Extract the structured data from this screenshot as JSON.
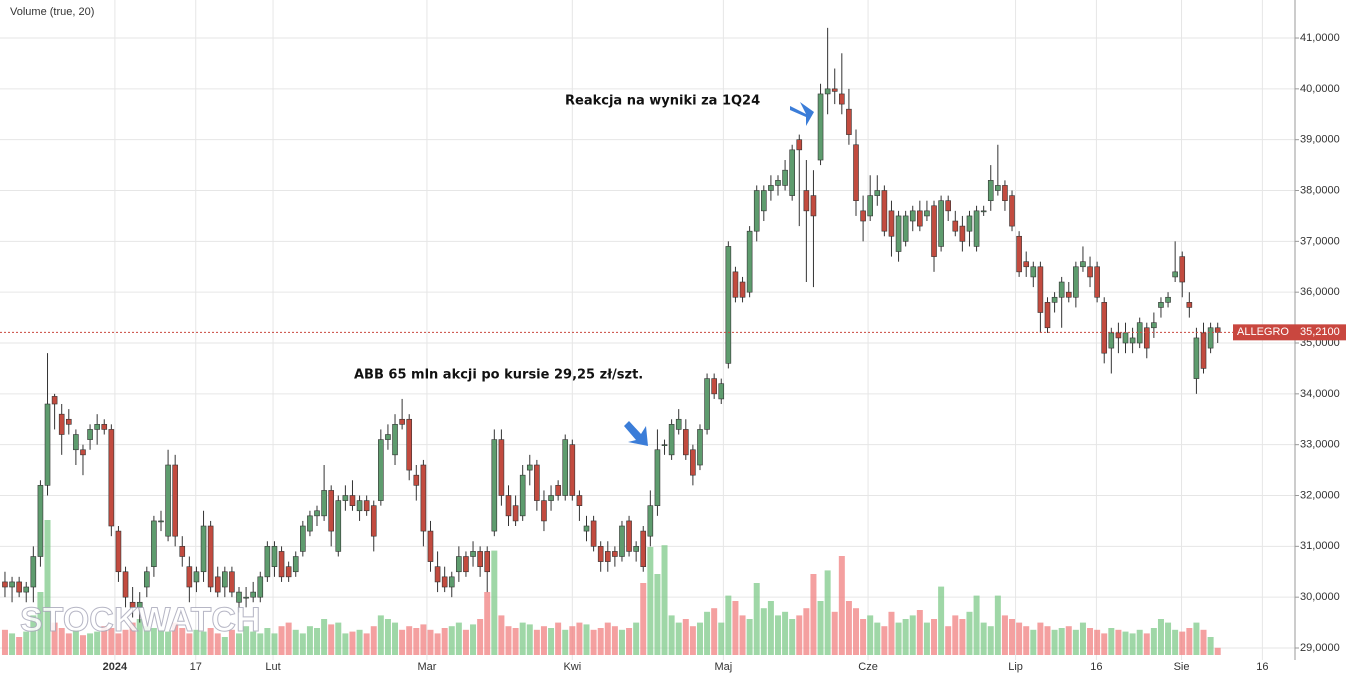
{
  "chart_data": {
    "type": "candlestick",
    "title": "Volume (true, 20)",
    "symbol": "ALLEGRO",
    "last_price": {
      "value": 35.21,
      "label": "35,2100"
    },
    "watermark": "STOCKWATCH",
    "annotations": [
      "Reakcja na wyniki za 1Q24",
      "ABB 65 mln akcji po kursie 29,25 zł/szt."
    ],
    "up_color": "#5e9c6e",
    "down_color": "#c24b3f",
    "last_price_color": "#c9473f",
    "xlim": [
      -0.7,
      181.9
    ],
    "xticks": [
      {
        "value": 15.5,
        "label": "2024"
      },
      {
        "value": 26.9,
        "label": "17"
      },
      {
        "value": 37.8,
        "label": "Lut"
      },
      {
        "value": 59.5,
        "label": "Mar"
      },
      {
        "value": 80,
        "label": "Kwi"
      },
      {
        "value": 101.3,
        "label": "Maj"
      },
      {
        "value": 121.7,
        "label": "Cze"
      },
      {
        "value": 142.5,
        "label": "Lip"
      },
      {
        "value": 153.9,
        "label": "16"
      },
      {
        "value": 165.9,
        "label": "Sie"
      },
      {
        "value": 177.3,
        "label": "16"
      }
    ],
    "ylim": [
      28.764,
      41.748
    ],
    "yticks": [
      {
        "value": 29,
        "label": "29,0000"
      },
      {
        "value": 30,
        "label": "30,0000"
      },
      {
        "value": 31,
        "label": "31,0000"
      },
      {
        "value": 32,
        "label": "32,0000"
      },
      {
        "value": 33,
        "label": "33,0000"
      },
      {
        "value": 34,
        "label": "34,0000"
      },
      {
        "value": 35,
        "label": "35,0000"
      },
      {
        "value": 36,
        "label": "36,0000"
      },
      {
        "value": 37,
        "label": "37,0000"
      },
      {
        "value": 38,
        "label": "38,0000"
      },
      {
        "value": 39,
        "label": "39,0000"
      },
      {
        "value": 40,
        "label": "40,0000"
      },
      {
        "value": 41,
        "label": "41,0000"
      }
    ],
    "y2lim": [
      0,
      100
    ],
    "grid": true,
    "open": [
      30.3,
      30.2,
      30.3,
      30.1,
      30.2,
      30.8,
      32.2,
      33.95,
      33.6,
      33.5,
      32.9,
      32.9,
      33.1,
      33.3,
      33.4,
      33.3,
      31.3,
      30.5,
      29.9,
      29.8,
      30.2,
      30.6,
      31.5,
      31.2,
      32.6,
      31.0,
      30.6,
      30.3,
      30.5,
      31.4,
      30.4,
      30.2,
      30.5,
      29.9,
      30.0,
      30.0,
      30.0,
      30.4,
      30.6,
      30.9,
      30.6,
      30.5,
      30.9,
      31.3,
      31.6,
      31.6,
      32.1,
      30.9,
      31.9,
      32.0,
      31.7,
      31.9,
      31.8,
      31.9,
      33.1,
      32.8,
      33.5,
      33.5,
      32.4,
      32.6,
      31.3,
      30.6,
      30.4,
      30.2,
      30.5,
      30.8,
      30.8,
      30.9,
      30.9,
      31.3,
      33.1,
      32.0,
      31.8,
      31.6,
      32.5,
      32.6,
      31.9,
      31.9,
      32.2,
      32.0,
      33.0,
      32.0,
      31.3,
      31.5,
      31.0,
      30.9,
      30.9,
      30.8,
      31.5,
      30.9,
      31.3,
      31.2,
      31.8,
      33.0,
      32.8,
      33.3,
      33.3,
      32.9,
      32.6,
      33.3,
      34.3,
      33.9,
      34.6,
      36.4,
      36.2,
      36.0,
      37.2,
      37.6,
      38.0,
      38.1,
      38.1,
      37.9,
      39.0,
      38.0,
      37.9,
      38.6,
      39.9,
      40.0,
      39.9,
      39.6,
      38.9,
      37.6,
      37.5,
      37.9,
      38.0,
      37.6,
      36.8,
      37.0,
      37.4,
      37.6,
      37.5,
      37.7,
      36.9,
      37.8,
      37.4,
      37.3,
      37.2,
      36.9,
      37.6,
      37.8,
      38.0,
      38.1,
      37.9,
      37.1,
      36.6,
      36.3,
      36.5,
      35.8,
      35.8,
      35.9,
      36.0,
      35.9,
      36.5,
      36.5,
      36.5,
      35.8,
      34.9,
      35.2,
      35.0,
      35.0,
      35.0,
      35.3,
      35.3,
      35.7,
      35.8,
      36.3,
      36.7,
      35.8,
      34.3,
      35.2,
      34.9,
      35.3
    ],
    "high": [
      30.5,
      30.4,
      30.4,
      30.3,
      31.0,
      32.3,
      34.8,
      34.0,
      33.8,
      33.7,
      33.3,
      33.0,
      33.4,
      33.6,
      33.5,
      33.4,
      31.4,
      30.6,
      30.2,
      30.1,
      30.6,
      31.6,
      31.7,
      32.9,
      32.8,
      31.2,
      30.8,
      30.6,
      31.7,
      31.5,
      30.6,
      30.6,
      30.6,
      30.2,
      30.2,
      30.3,
      30.5,
      31.1,
      31.1,
      31.0,
      30.7,
      30.9,
      31.5,
      31.7,
      31.8,
      32.6,
      32.2,
      32.0,
      32.2,
      32.3,
      32.0,
      32.0,
      31.9,
      33.3,
      33.4,
      33.6,
      33.9,
      33.6,
      32.6,
      32.7,
      31.5,
      30.9,
      30.6,
      30.5,
      31.0,
      30.9,
      31.1,
      31.0,
      31.0,
      33.3,
      33.3,
      32.2,
      32.0,
      32.6,
      32.8,
      32.7,
      32.1,
      32.2,
      32.3,
      33.2,
      33.1,
      32.1,
      31.6,
      31.6,
      31.1,
      31.1,
      31.0,
      31.5,
      31.6,
      31.1,
      31.4,
      32.1,
      33.3,
      33.1,
      33.5,
      33.7,
      33.5,
      33.0,
      33.4,
      34.4,
      34.4,
      34.3,
      37.0,
      36.5,
      36.3,
      37.3,
      38.1,
      38.1,
      38.3,
      38.3,
      38.6,
      38.9,
      39.1,
      38.6,
      38.4,
      40.1,
      41.2,
      40.4,
      40.7,
      40.0,
      39.2,
      37.9,
      38.3,
      38.3,
      38.1,
      37.8,
      37.6,
      37.6,
      37.7,
      37.8,
      37.8,
      37.8,
      37.9,
      37.9,
      37.6,
      37.5,
      37.6,
      37.7,
      37.7,
      38.5,
      38.9,
      38.2,
      38.0,
      37.2,
      36.8,
      36.6,
      36.6,
      35.9,
      36.0,
      36.3,
      36.2,
      36.6,
      36.9,
      36.7,
      36.6,
      35.9,
      35.3,
      35.4,
      35.4,
      35.3,
      35.5,
      35.4,
      35.6,
      35.9,
      36.0,
      37.0,
      36.8,
      36.0,
      35.3,
      35.4,
      35.4,
      35.4
    ],
    "low": [
      30.0,
      29.9,
      30.0,
      29.9,
      29.9,
      30.6,
      32.0,
      33.3,
      32.8,
      33.2,
      32.6,
      32.4,
      32.9,
      33.0,
      33.2,
      31.2,
      30.3,
      29.8,
      29.6,
      29.5,
      30.0,
      30.4,
      31.3,
      31.1,
      31.0,
      30.6,
      29.9,
      30.1,
      30.3,
      30.1,
      30.0,
      30.0,
      30.0,
      29.7,
      29.8,
      29.9,
      29.9,
      30.3,
      30.4,
      30.3,
      30.3,
      30.4,
      30.8,
      31.2,
      31.4,
      31.5,
      31.0,
      30.8,
      31.7,
      31.7,
      31.5,
      31.6,
      30.9,
      31.8,
      32.9,
      32.6,
      33.3,
      32.3,
      31.9,
      31.0,
      30.5,
      30.1,
      30.1,
      30.0,
      30.3,
      30.4,
      30.6,
      30.4,
      30.1,
      31.2,
      31.8,
      31.4,
      31.4,
      31.5,
      32.2,
      31.7,
      31.3,
      31.7,
      31.9,
      31.9,
      31.9,
      31.5,
      31.1,
      30.9,
      30.5,
      30.5,
      30.6,
      30.7,
      30.8,
      30.7,
      30.5,
      31.0,
      31.6,
      32.8,
      32.7,
      33.2,
      32.7,
      32.2,
      32.5,
      33.2,
      33.9,
      33.8,
      34.5,
      35.8,
      35.8,
      35.9,
      37.0,
      37.4,
      37.8,
      37.9,
      38.0,
      37.8,
      37.3,
      36.2,
      36.1,
      38.5,
      39.5,
      39.7,
      39.5,
      38.9,
      37.5,
      37.0,
      37.4,
      37.7,
      37.1,
      36.7,
      36.6,
      36.9,
      37.2,
      37.2,
      37.4,
      36.4,
      36.8,
      37.4,
      37.1,
      36.8,
      36.9,
      36.8,
      37.5,
      37.6,
      37.9,
      37.6,
      37.2,
      36.3,
      36.3,
      36.1,
      35.2,
      35.2,
      35.6,
      35.3,
      35.8,
      35.7,
      36.4,
      36.1,
      35.8,
      34.6,
      34.4,
      34.8,
      34.8,
      34.8,
      34.9,
      34.7,
      35.1,
      35.5,
      35.7,
      36.2,
      35.9,
      35.5,
      34.0,
      34.4,
      34.8,
      35.0
    ],
    "close": [
      30.2,
      30.3,
      30.1,
      30.2,
      30.8,
      32.2,
      33.8,
      33.8,
      33.2,
      33.4,
      33.2,
      32.8,
      33.3,
      33.4,
      33.3,
      31.4,
      30.5,
      30.0,
      29.8,
      29.9,
      30.5,
      31.5,
      31.5,
      32.6,
      31.2,
      30.8,
      30.2,
      30.5,
      31.4,
      30.2,
      30.1,
      30.5,
      30.1,
      30.1,
      30.0,
      30.1,
      30.4,
      31.0,
      31.0,
      30.4,
      30.4,
      30.8,
      31.4,
      31.6,
      31.7,
      32.1,
      31.3,
      31.9,
      32.0,
      31.8,
      31.9,
      31.7,
      31.2,
      33.1,
      33.2,
      33.4,
      33.4,
      32.5,
      32.2,
      31.3,
      30.7,
      30.3,
      30.2,
      30.4,
      30.8,
      30.5,
      30.9,
      30.6,
      30.5,
      33.1,
      32.0,
      31.6,
      31.5,
      32.4,
      32.6,
      31.9,
      31.5,
      32.0,
      32.0,
      33.1,
      32.0,
      31.8,
      31.4,
      31.0,
      30.7,
      30.7,
      30.8,
      31.4,
      30.9,
      31.0,
      30.6,
      31.8,
      32.9,
      33.0,
      33.4,
      33.5,
      32.8,
      32.4,
      33.3,
      34.3,
      34.0,
      34.2,
      36.9,
      35.9,
      35.9,
      37.2,
      38.0,
      38.0,
      38.1,
      38.2,
      38.4,
      38.8,
      38.8,
      37.6,
      37.5,
      39.9,
      40.0,
      39.95,
      39.7,
      39.1,
      37.8,
      37.4,
      37.9,
      38.0,
      37.2,
      37.1,
      37.5,
      37.5,
      37.6,
      37.3,
      37.6,
      36.7,
      37.8,
      37.6,
      37.2,
      37.0,
      37.5,
      37.6,
      37.6,
      38.2,
      38.1,
      37.8,
      37.3,
      36.4,
      36.5,
      36.5,
      35.6,
      35.3,
      35.9,
      36.2,
      35.9,
      36.5,
      36.6,
      36.3,
      35.9,
      34.8,
      35.2,
      35.1,
      35.2,
      35.1,
      35.4,
      34.9,
      35.4,
      35.8,
      35.9,
      36.4,
      36.2,
      35.7,
      35.1,
      34.5,
      35.3,
      35.21
    ],
    "volume": [
      14,
      12,
      10,
      13,
      22,
      35,
      75,
      18,
      15,
      12,
      14,
      11,
      12,
      13,
      16,
      15,
      12,
      14,
      18,
      20,
      16,
      15,
      14,
      13,
      18,
      15,
      12,
      14,
      13,
      15,
      12,
      10,
      14,
      12,
      16,
      13,
      12,
      15,
      12,
      16,
      18,
      14,
      12,
      16,
      15,
      20,
      17,
      18,
      12,
      13,
      14,
      12,
      16,
      22,
      20,
      18,
      14,
      16,
      15,
      17,
      14,
      12,
      15,
      16,
      18,
      14,
      17,
      20,
      35,
      58,
      22,
      16,
      15,
      18,
      17,
      14,
      16,
      15,
      18,
      14,
      16,
      18,
      17,
      14,
      15,
      18,
      16,
      14,
      15,
      18,
      40,
      60,
      45,
      61,
      22,
      18,
      20,
      16,
      18,
      24,
      26,
      18,
      33,
      30,
      22,
      20,
      40,
      26,
      30,
      22,
      24,
      20,
      22,
      26,
      45,
      30,
      47,
      24,
      55,
      30,
      26,
      20,
      22,
      18,
      16,
      24,
      18,
      20,
      22,
      25,
      18,
      20,
      38,
      16,
      22,
      20,
      24,
      33,
      18,
      16,
      33,
      22,
      20,
      18,
      16,
      14,
      18,
      16,
      14,
      15,
      16,
      14,
      18,
      15,
      14,
      12,
      15,
      14,
      13,
      12,
      14,
      12,
      15,
      20,
      18,
      14,
      13,
      15,
      18,
      14,
      10,
      4
    ]
  }
}
